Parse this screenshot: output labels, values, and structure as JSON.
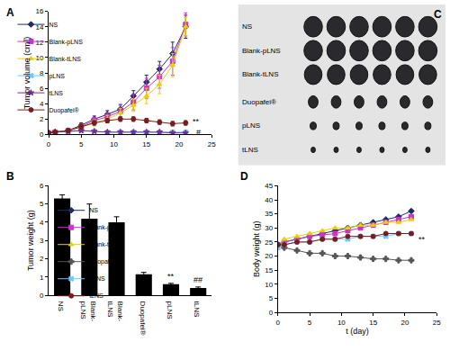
{
  "chart_data": [
    {
      "type": "line",
      "label": "A",
      "y_label": "Tumor volume (cm³)",
      "grid": false,
      "legend": "top left",
      "xlim": [
        0,
        25
      ],
      "xticks": [
        0,
        5,
        10,
        15,
        20,
        25
      ],
      "ylim": [
        0,
        16
      ],
      "yticks": [
        0,
        2,
        4,
        6,
        8,
        10,
        12,
        14,
        16
      ],
      "x": [
        0,
        1,
        3,
        5,
        7,
        9,
        11,
        13,
        15,
        17,
        19,
        21
      ],
      "series": [
        {
          "name": "NS",
          "color": "#1f2a6b",
          "marker": "diamond",
          "values": [
            0.2,
            0.3,
            0.5,
            1.2,
            2.0,
            2.6,
            3.3,
            5.0,
            6.8,
            8.5,
            10.5,
            14.0
          ],
          "error": [
            0.05,
            0.1,
            0.2,
            0.3,
            0.4,
            0.5,
            0.6,
            0.7,
            0.9,
            1.0,
            1.5,
            1.5
          ]
        },
        {
          "name": "Blank-pLNS",
          "color": "#cc33cc",
          "marker": "square",
          "values": [
            0.2,
            0.3,
            0.5,
            1.0,
            1.8,
            2.3,
            3.0,
            4.2,
            6.0,
            7.5,
            9.5,
            14.3
          ],
          "error": [
            0.05,
            0.1,
            0.2,
            0.3,
            0.4,
            0.5,
            0.8,
            1.0,
            1.3,
            1.5,
            1.8,
            1.5
          ]
        },
        {
          "name": "Blank-tLNS",
          "color": "#e6d200",
          "marker": "triangle-up",
          "values": [
            0.2,
            0.3,
            0.5,
            1.0,
            1.5,
            2.0,
            2.8,
            3.8,
            5.0,
            6.5,
            9.0,
            14.0
          ],
          "error": [
            0.05,
            0.1,
            0.2,
            0.3,
            0.4,
            0.5,
            0.6,
            0.8,
            1.0,
            1.2,
            1.5,
            1.2
          ]
        },
        {
          "name": "pLNS",
          "color": "#66ccff",
          "marker": "x",
          "values": [
            0.2,
            0.3,
            0.4,
            0.5,
            0.4,
            0.3,
            0.3,
            0.3,
            0.3,
            0.3,
            0.3,
            0.3
          ]
        },
        {
          "name": "tLNS",
          "color": "#7a2a8a",
          "marker": "star",
          "values": [
            0.2,
            0.3,
            0.4,
            0.5,
            0.4,
            0.3,
            0.3,
            0.3,
            0.3,
            0.3,
            0.2,
            0.2
          ]
        },
        {
          "name": "Duopafei®",
          "color": "#7a1c1c",
          "marker": "circle",
          "values": [
            0.2,
            0.3,
            0.5,
            1.0,
            1.5,
            1.8,
            2.0,
            2.0,
            1.8,
            1.6,
            1.4,
            1.5
          ],
          "error": [
            0.05,
            0.1,
            0.2,
            0.3,
            0.3,
            0.3,
            0.3,
            0.3,
            0.3,
            0.3,
            0.3,
            0.3
          ]
        }
      ],
      "annotations": [
        {
          "text": "**",
          "x": 21.8,
          "y": 1.7
        },
        {
          "text": "#",
          "x": 22.3,
          "y": 0.3
        }
      ]
    },
    {
      "type": "bar",
      "label": "B",
      "y_label": "Tumor weight (g)",
      "grid": false,
      "color": "#000000",
      "ylim": [
        0,
        6
      ],
      "yticks": [
        0,
        1,
        2,
        3,
        4,
        5,
        6
      ],
      "categories": [
        "NS",
        "Blank-pLNS",
        "Blank-tLNS",
        "Duopafei®",
        "pLNS",
        "tLNS"
      ],
      "values": [
        5.3,
        4.2,
        4.0,
        1.15,
        0.6,
        0.4
      ],
      "error": [
        0.2,
        0.8,
        0.3,
        0.1,
        0.05,
        0.05
      ],
      "annotations": [
        {
          "text": "**",
          "category": "pLNS",
          "y": 0.7
        },
        {
          "text": "##",
          "category": "tLNS",
          "y": 0.5
        }
      ]
    },
    {
      "type": "image",
      "label": "C",
      "row_labels": [
        "NS",
        "Blank-pLNS",
        "Blank-tLNS",
        "Duopafei®",
        "pLNS",
        "tLNS"
      ]
    },
    {
      "type": "line",
      "label": "D",
      "x_label": "t (day)",
      "y_label": "Body weight (g)",
      "grid": false,
      "legend": "bottom left",
      "xlim": [
        0,
        25
      ],
      "xticks": [
        0,
        5,
        10,
        15,
        20,
        25
      ],
      "ylim": [
        0,
        45
      ],
      "yticks": [
        0,
        5,
        10,
        15,
        20,
        25,
        30,
        35,
        40,
        45
      ],
      "x": [
        0,
        1,
        3,
        5,
        7,
        9,
        11,
        13,
        15,
        17,
        19,
        21
      ],
      "series": [
        {
          "name": "NS",
          "color": "#1f2a6b",
          "marker": "diamond",
          "values": [
            24,
            25,
            26,
            27,
            28,
            29,
            30,
            31,
            32,
            33,
            34,
            36
          ]
        },
        {
          "name": "Blank-pLNS",
          "color": "#cc33cc",
          "marker": "square",
          "values": [
            24,
            25,
            26,
            27,
            27.5,
            28,
            29,
            30,
            31,
            32,
            33,
            34
          ]
        },
        {
          "name": "Blank-tLNS",
          "color": "#e6d200",
          "marker": "triangle-up",
          "values": [
            24,
            26,
            27,
            28,
            29,
            30,
            30,
            31,
            31,
            32,
            32,
            33
          ]
        },
        {
          "name": "Duopafei®",
          "color": "#555555",
          "marker": "cross",
          "values": [
            24,
            23,
            22,
            21,
            21,
            20,
            20,
            19.5,
            19,
            19,
            18.5,
            18.5
          ]
        },
        {
          "name": "pLNS",
          "color": "#66ccff",
          "marker": "x",
          "values": [
            23,
            24,
            25,
            25,
            26,
            26,
            26,
            27,
            27,
            27,
            28,
            28
          ]
        },
        {
          "name": "tLNS",
          "color": "#7a1c1c",
          "marker": "circle",
          "values": [
            24,
            24,
            25,
            25,
            26,
            26,
            27,
            27,
            27,
            28,
            28,
            28
          ]
        }
      ],
      "annotations": [
        {
          "text": "**",
          "x": 21.8,
          "y": 26
        }
      ]
    }
  ]
}
